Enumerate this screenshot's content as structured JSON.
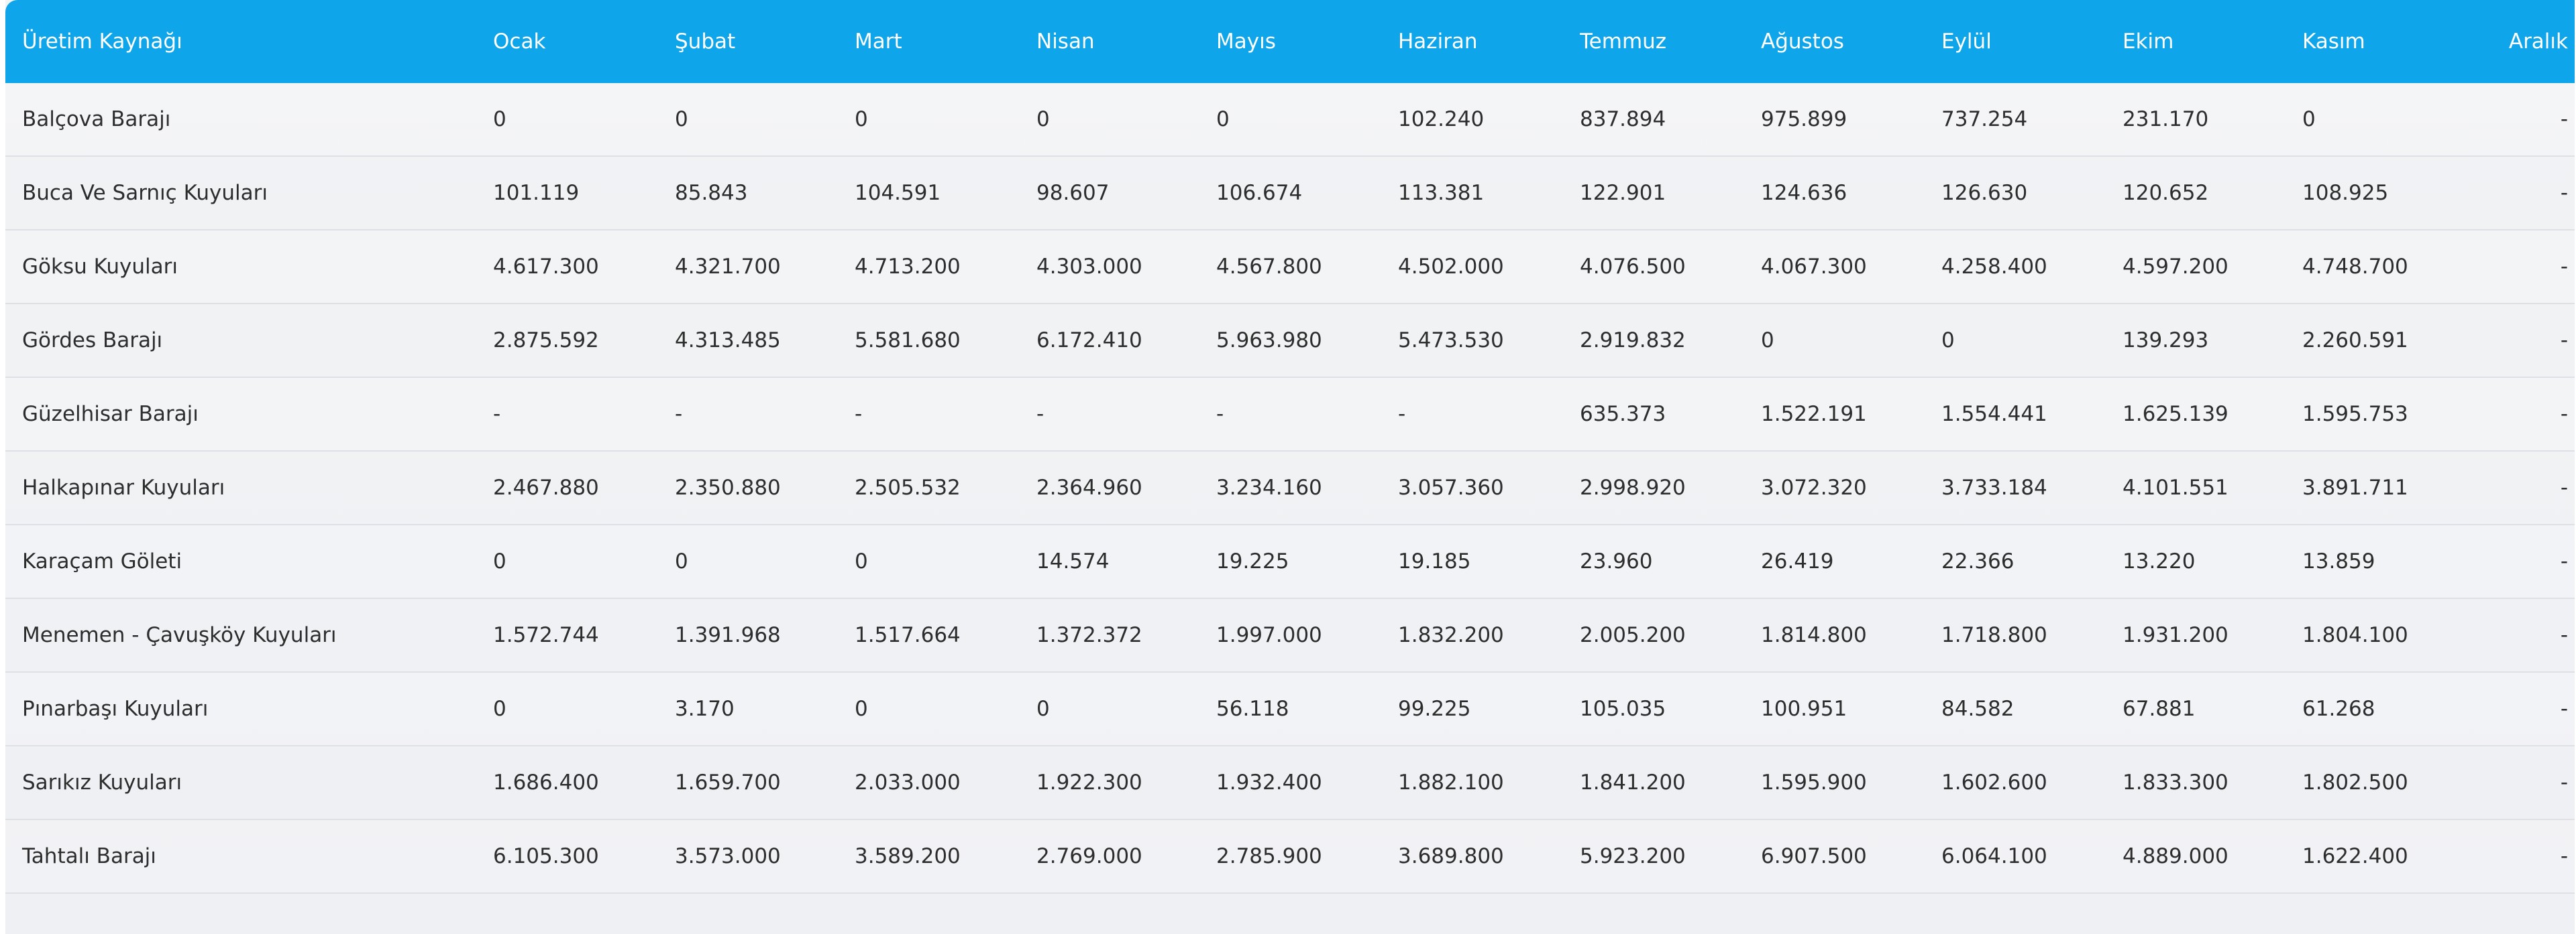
{
  "table": {
    "columns": [
      "Üretim Kaynağı",
      "Ocak",
      "Şubat",
      "Mart",
      "Nisan",
      "Mayıs",
      "Haziran",
      "Temmuz",
      "Ağustos",
      "Eylül",
      "Ekim",
      "Kasım",
      "Aralık"
    ],
    "rows": [
      {
        "source": "Balçova Barajı",
        "values": [
          "0",
          "0",
          "0",
          "0",
          "0",
          "102.240",
          "837.894",
          "975.899",
          "737.254",
          "231.170",
          "0",
          "-"
        ]
      },
      {
        "source": "Buca Ve Sarnıç Kuyuları",
        "values": [
          "101.119",
          "85.843",
          "104.591",
          "98.607",
          "106.674",
          "113.381",
          "122.901",
          "124.636",
          "126.630",
          "120.652",
          "108.925",
          "-"
        ]
      },
      {
        "source": "Göksu Kuyuları",
        "values": [
          "4.617.300",
          "4.321.700",
          "4.713.200",
          "4.303.000",
          "4.567.800",
          "4.502.000",
          "4.076.500",
          "4.067.300",
          "4.258.400",
          "4.597.200",
          "4.748.700",
          "-"
        ]
      },
      {
        "source": "Gördes Barajı",
        "values": [
          "2.875.592",
          "4.313.485",
          "5.581.680",
          "6.172.410",
          "5.963.980",
          "5.473.530",
          "2.919.832",
          "0",
          "0",
          "139.293",
          "2.260.591",
          "-"
        ]
      },
      {
        "source": "Güzelhisar Barajı",
        "values": [
          "-",
          "-",
          "-",
          "-",
          "-",
          "-",
          "635.373",
          "1.522.191",
          "1.554.441",
          "1.625.139",
          "1.595.753",
          "-"
        ]
      },
      {
        "source": "Halkapınar Kuyuları",
        "values": [
          "2.467.880",
          "2.350.880",
          "2.505.532",
          "2.364.960",
          "3.234.160",
          "3.057.360",
          "2.998.920",
          "3.072.320",
          "3.733.184",
          "4.101.551",
          "3.891.711",
          "-"
        ]
      },
      {
        "source": "Karaçam Göleti",
        "values": [
          "0",
          "0",
          "0",
          "14.574",
          "19.225",
          "19.185",
          "23.960",
          "26.419",
          "22.366",
          "13.220",
          "13.859",
          "-"
        ]
      },
      {
        "source": "Menemen - Çavuşköy Kuyuları",
        "values": [
          "1.572.744",
          "1.391.968",
          "1.517.664",
          "1.372.372",
          "1.997.000",
          "1.832.200",
          "2.005.200",
          "1.814.800",
          "1.718.800",
          "1.931.200",
          "1.804.100",
          "-"
        ]
      },
      {
        "source": "Pınarbaşı Kuyuları",
        "values": [
          "0",
          "3.170",
          "0",
          "0",
          "56.118",
          "99.225",
          "105.035",
          "100.951",
          "84.582",
          "67.881",
          "61.268",
          "-"
        ]
      },
      {
        "source": "Sarıkız Kuyuları",
        "values": [
          "1.686.400",
          "1.659.700",
          "2.033.000",
          "1.922.300",
          "1.932.400",
          "1.882.100",
          "1.841.200",
          "1.595.900",
          "1.602.600",
          "1.833.300",
          "1.802.500",
          "-"
        ]
      },
      {
        "source": "Tahtalı Barajı",
        "values": [
          "6.105.300",
          "3.573.000",
          "3.589.200",
          "2.769.000",
          "2.785.900",
          "3.689.800",
          "5.923.200",
          "6.907.500",
          "6.064.100",
          "4.889.000",
          "1.622.400",
          "-"
        ]
      }
    ]
  }
}
